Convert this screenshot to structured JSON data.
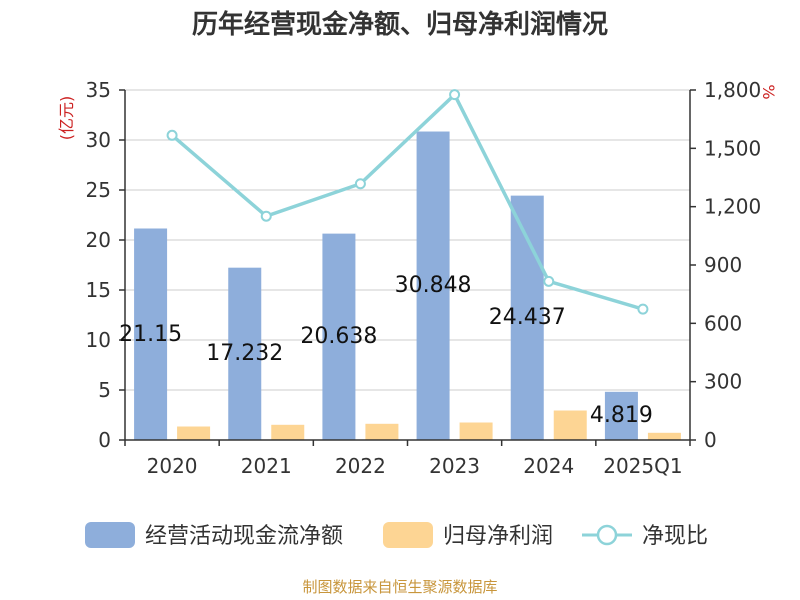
{
  "chart_data": {
    "type": "bar",
    "title": "历年经营现金净额、归母净利润情况",
    "categories": [
      "2020",
      "2021",
      "2022",
      "2023",
      "2024",
      "2025Q1"
    ],
    "left_axis": {
      "unit": "(亿元)",
      "ylim": [
        0,
        35
      ],
      "ticks": [
        "0",
        "5",
        "10",
        "15",
        "20",
        "25",
        "30",
        "35"
      ]
    },
    "right_axis": {
      "unit": "%",
      "ylim": [
        0,
        1800
      ],
      "ticks": [
        "0",
        "300",
        "600",
        "900",
        "1,200",
        "1,500",
        "1,800"
      ]
    },
    "series": [
      {
        "name": "经营活动现金流净额",
        "type": "bar",
        "axis": "left",
        "color": "#8eaedb",
        "values": [
          21.15,
          17.232,
          20.638,
          30.848,
          24.437,
          4.819
        ],
        "labels": [
          "21.15",
          "17.232",
          "20.638",
          "30.848",
          "24.437",
          "4.819"
        ]
      },
      {
        "name": "归母净利润",
        "type": "bar",
        "axis": "left",
        "color": "#fdd594",
        "values": [
          1.35,
          1.52,
          1.62,
          1.75,
          2.95,
          0.72
        ]
      },
      {
        "name": "净现比",
        "type": "line",
        "axis": "right",
        "color": "#8dd3d9",
        "values": [
          1567,
          1151,
          1318,
          1776,
          816,
          673
        ]
      }
    ],
    "grid": true,
    "legend_position": "bottom"
  },
  "footer": {
    "source": "制图数据来自恒生聚源数据库"
  }
}
